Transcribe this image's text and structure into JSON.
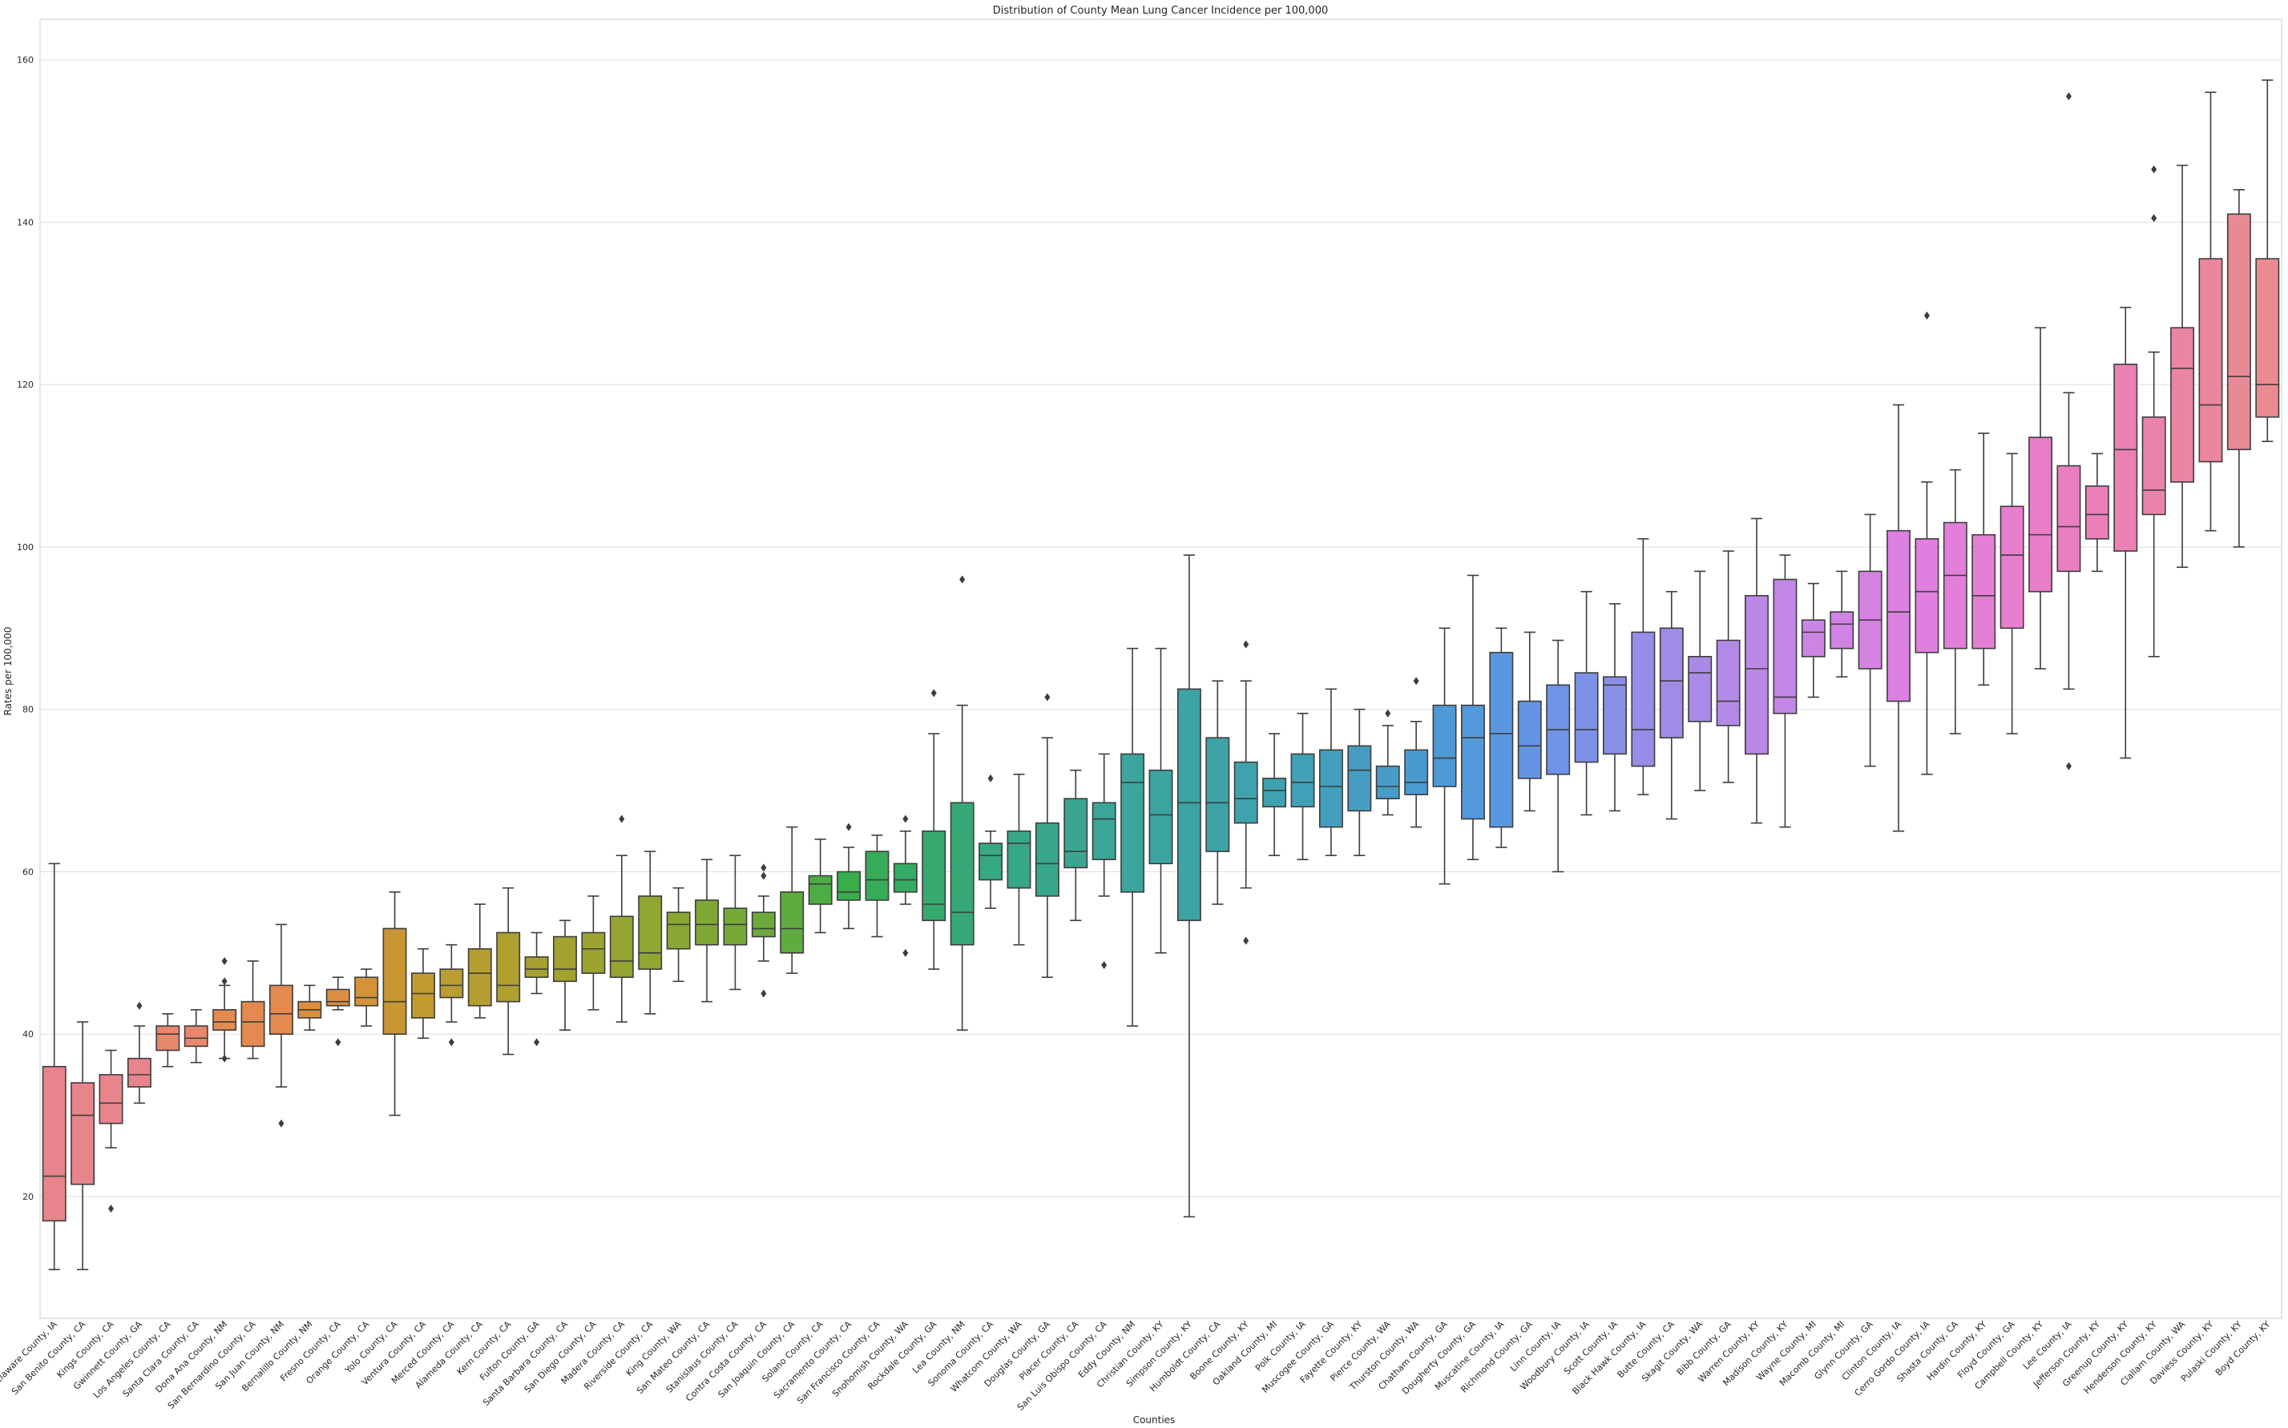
{
  "chart_data": {
    "type": "box",
    "title": "Distribution of County Mean Lung Cancer Incidence per 100,000",
    "xlabel": "Counties",
    "ylabel": "Rates per 100,000",
    "ylim": [
      5,
      165
    ],
    "yticks": [
      20,
      40,
      60,
      80,
      100,
      120,
      140,
      160
    ],
    "grid": "horizontal",
    "categories": [
      {
        "name": "Delaware County, IA",
        "stats": [
          11,
          17,
          22.5,
          36,
          61
        ],
        "outliers": [],
        "color": "#e8858c"
      },
      {
        "name": "San Benito County, CA",
        "stats": [
          11,
          21.5,
          30,
          34,
          41.5
        ],
        "outliers": [],
        "color": "#e8858c"
      },
      {
        "name": "Kings County, CA",
        "stats": [
          26,
          29,
          31.5,
          35,
          38
        ],
        "outliers": [
          18.5
        ],
        "color": "#e8858c"
      },
      {
        "name": "Gwinnett County, GA",
        "stats": [
          31.5,
          33.5,
          35,
          37,
          41
        ],
        "outliers": [
          43.5
        ],
        "color": "#e8858c"
      },
      {
        "name": "Los Angeles County, CA",
        "stats": [
          36,
          38,
          40,
          41,
          42.5
        ],
        "outliers": [],
        "color": "#e8876e"
      },
      {
        "name": "Santa Clara County, CA",
        "stats": [
          36.5,
          38.5,
          39.5,
          41,
          43
        ],
        "outliers": [],
        "color": "#e8876e"
      },
      {
        "name": "Dona Ana County, NM",
        "stats": [
          37,
          40.5,
          41.5,
          43,
          46
        ],
        "outliers": [
          37,
          46.5,
          49
        ],
        "color": "#e48a50"
      },
      {
        "name": "San Bernardino County, CA",
        "stats": [
          37,
          38.5,
          41.5,
          44,
          49
        ],
        "outliers": [],
        "color": "#e48a50"
      },
      {
        "name": "San Juan County, NM",
        "stats": [
          33.5,
          40,
          42.5,
          46,
          53.5
        ],
        "outliers": [
          29
        ],
        "color": "#e48a50"
      },
      {
        "name": "Bernalillo County, NM",
        "stats": [
          40.5,
          42,
          43,
          44,
          46
        ],
        "outliers": [],
        "color": "#dd8e40"
      },
      {
        "name": "Fresno County, CA",
        "stats": [
          43,
          43.5,
          44,
          45.5,
          47
        ],
        "outliers": [
          39
        ],
        "color": "#dd8e40"
      },
      {
        "name": "Orange County, CA",
        "stats": [
          41,
          43.5,
          44.5,
          47,
          48
        ],
        "outliers": [],
        "color": "#d49338"
      },
      {
        "name": "Yolo County, CA",
        "stats": [
          30,
          40,
          44,
          53,
          57.5
        ],
        "outliers": [],
        "color": "#c99634"
      },
      {
        "name": "Ventura County, CA",
        "stats": [
          39.5,
          42,
          45,
          47.5,
          50.5
        ],
        "outliers": [],
        "color": "#c19a32"
      },
      {
        "name": "Merced County, CA",
        "stats": [
          41.5,
          44.5,
          46,
          48,
          51
        ],
        "outliers": [
          39
        ],
        "color": "#bb9c30"
      },
      {
        "name": "Alameda County, CA",
        "stats": [
          42,
          43.5,
          47.5,
          50.5,
          56
        ],
        "outliers": [],
        "color": "#b59e2f"
      },
      {
        "name": "Kern County, CA",
        "stats": [
          37.5,
          44,
          46,
          52.5,
          58
        ],
        "outliers": [],
        "color": "#b09f2f"
      },
      {
        "name": "Fulton County, GA",
        "stats": [
          45,
          47,
          48,
          49.5,
          52.5
        ],
        "outliers": [
          39
        ],
        "color": "#a9a12f"
      },
      {
        "name": "Santa Barbara County, CA",
        "stats": [
          40.5,
          46.5,
          48,
          52,
          54
        ],
        "outliers": [],
        "color": "#a3a22f"
      },
      {
        "name": "San Diego County, CA",
        "stats": [
          43,
          47.5,
          50.5,
          52.5,
          57
        ],
        "outliers": [],
        "color": "#9ca42f"
      },
      {
        "name": "Madera County, CA",
        "stats": [
          41.5,
          47,
          49,
          54.5,
          62
        ],
        "outliers": [
          66.5
        ],
        "color": "#96a530"
      },
      {
        "name": "Riverside County, CA",
        "stats": [
          42.5,
          48,
          50,
          57,
          62.5
        ],
        "outliers": [],
        "color": "#8fa631"
      },
      {
        "name": "King County, WA",
        "stats": [
          46.5,
          50.5,
          53.5,
          55,
          58
        ],
        "outliers": [],
        "color": "#88a733"
      },
      {
        "name": "San Mateo County, CA",
        "stats": [
          44,
          51,
          53.5,
          56.5,
          61.5
        ],
        "outliers": [],
        "color": "#80a835"
      },
      {
        "name": "Stanislaus County, CA",
        "stats": [
          45.5,
          51,
          53.5,
          55.5,
          62
        ],
        "outliers": [],
        "color": "#77a937"
      },
      {
        "name": "Contra Costa County, CA",
        "stats": [
          49,
          52,
          53,
          55,
          57
        ],
        "outliers": [
          45,
          59.5,
          60.5
        ],
        "color": "#6daa3a"
      },
      {
        "name": "San Joaquin County, CA",
        "stats": [
          47.5,
          50,
          53,
          57.5,
          65.5
        ],
        "outliers": [],
        "color": "#5fab3e"
      },
      {
        "name": "Solano County, CA",
        "stats": [
          52.5,
          56,
          58.5,
          59.5,
          64
        ],
        "outliers": [],
        "color": "#4dac44"
      },
      {
        "name": "Sacramento County, CA",
        "stats": [
          53,
          56.5,
          57.5,
          60,
          63
        ],
        "outliers": [
          65.5
        ],
        "color": "#39ac4c"
      },
      {
        "name": "San Francisco County, CA",
        "stats": [
          52,
          56.5,
          59,
          62.5,
          64.5
        ],
        "outliers": [],
        "color": "#36ab58"
      },
      {
        "name": "Snohomish County, WA",
        "stats": [
          56,
          57.5,
          59,
          61,
          65
        ],
        "outliers": [
          50,
          66.5
        ],
        "color": "#35aa64"
      },
      {
        "name": "Rockdale County, GA",
        "stats": [
          48,
          54,
          56,
          65,
          77
        ],
        "outliers": [
          82
        ],
        "color": "#35a96e"
      },
      {
        "name": "Lea County, NM",
        "stats": [
          40.5,
          51,
          55,
          68.5,
          80.5
        ],
        "outliers": [
          96
        ],
        "color": "#36a977"
      },
      {
        "name": "Sonoma County, CA",
        "stats": [
          55.5,
          59,
          62,
          63.5,
          65
        ],
        "outliers": [
          71.5
        ],
        "color": "#37a87f"
      },
      {
        "name": "Whatcom County, WA",
        "stats": [
          51,
          58,
          63.5,
          65,
          72
        ],
        "outliers": [],
        "color": "#38a786"
      },
      {
        "name": "Douglas County, GA",
        "stats": [
          47,
          57,
          61,
          66,
          76.5
        ],
        "outliers": [
          81.5
        ],
        "color": "#39a78c"
      },
      {
        "name": "Placer County, CA",
        "stats": [
          54,
          60.5,
          62.5,
          69,
          72.5
        ],
        "outliers": [],
        "color": "#3aa692"
      },
      {
        "name": "San Luis Obispo County, CA",
        "stats": [
          57,
          61.5,
          66.5,
          68.5,
          74.5
        ],
        "outliers": [
          48.5
        ],
        "color": "#3ba597"
      },
      {
        "name": "Eddy County, NM",
        "stats": [
          41,
          57.5,
          71,
          74.5,
          87.5
        ],
        "outliers": [],
        "color": "#3ca59c"
      },
      {
        "name": "Christian County, KY",
        "stats": [
          50,
          61,
          67,
          72.5,
          87.5
        ],
        "outliers": [],
        "color": "#3ca4a0"
      },
      {
        "name": "Simpson County, KY",
        "stats": [
          17.5,
          54,
          68.5,
          82.5,
          99
        ],
        "outliers": [],
        "color": "#3da3a4"
      },
      {
        "name": "Humboldt County, CA",
        "stats": [
          56,
          62.5,
          68.5,
          76.5,
          83.5
        ],
        "outliers": [],
        "color": "#3ea3a8"
      },
      {
        "name": "Boone County, KY",
        "stats": [
          58,
          66,
          69,
          73.5,
          83.5
        ],
        "outliers": [
          51.5,
          88
        ],
        "color": "#3fa2ad"
      },
      {
        "name": "Oakland County, MI",
        "stats": [
          62,
          68,
          70,
          71.5,
          77
        ],
        "outliers": [],
        "color": "#40a1b1"
      },
      {
        "name": "Polk County, IA",
        "stats": [
          61.5,
          68,
          71,
          74.5,
          79.5
        ],
        "outliers": [],
        "color": "#41a0b6"
      },
      {
        "name": "Muscogee County, GA",
        "stats": [
          62,
          65.5,
          70.5,
          75,
          82.5
        ],
        "outliers": [],
        "color": "#439fbb"
      },
      {
        "name": "Fayette County, KY",
        "stats": [
          62,
          67.5,
          72.5,
          75.5,
          80
        ],
        "outliers": [],
        "color": "#459ec1"
      },
      {
        "name": "Pierce County, WA",
        "stats": [
          67,
          69,
          70.5,
          73,
          78
        ],
        "outliers": [
          79.5
        ],
        "color": "#479dc7"
      },
      {
        "name": "Thurston County, WA",
        "stats": [
          65.5,
          69.5,
          71,
          75,
          78.5
        ],
        "outliers": [
          83.5
        ],
        "color": "#4a9bcd"
      },
      {
        "name": "Chatham County, GA",
        "stats": [
          58.5,
          70.5,
          74,
          80.5,
          90
        ],
        "outliers": [],
        "color": "#4e9ad4"
      },
      {
        "name": "Dougherty County, GA",
        "stats": [
          61.5,
          66.5,
          76.5,
          80.5,
          96.5
        ],
        "outliers": [],
        "color": "#5399db"
      },
      {
        "name": "Muscatine County, IA",
        "stats": [
          63,
          65.5,
          77,
          87,
          90
        ],
        "outliers": [],
        "color": "#5a97e0"
      },
      {
        "name": "Richmond County, GA",
        "stats": [
          67.5,
          71.5,
          75.5,
          81,
          89.5
        ],
        "outliers": [],
        "color": "#6395e4"
      },
      {
        "name": "Linn County, IA",
        "stats": [
          60,
          72,
          77.5,
          83,
          88.5
        ],
        "outliers": [],
        "color": "#6f93e6"
      },
      {
        "name": "Woodbury County, IA",
        "stats": [
          67,
          73.5,
          77.5,
          84.5,
          94.5
        ],
        "outliers": [],
        "color": "#7c91e7"
      },
      {
        "name": "Scott County, IA",
        "stats": [
          67.5,
          74.5,
          83,
          84,
          93
        ],
        "outliers": [],
        "color": "#898fe7"
      },
      {
        "name": "Black Hawk County, IA",
        "stats": [
          69.5,
          73,
          77.5,
          89.5,
          101
        ],
        "outliers": [],
        "color": "#958de7"
      },
      {
        "name": "Butte County, CA",
        "stats": [
          66.5,
          76.5,
          83.5,
          90,
          94.5
        ],
        "outliers": [],
        "color": "#a08ce6"
      },
      {
        "name": "Skagit County, WA",
        "stats": [
          70,
          78.5,
          84.5,
          86.5,
          97
        ],
        "outliers": [],
        "color": "#aa8ae6"
      },
      {
        "name": "Bibb County, GA",
        "stats": [
          71,
          78,
          81,
          88.5,
          99.5
        ],
        "outliers": [],
        "color": "#b389e6"
      },
      {
        "name": "Warren County, KY",
        "stats": [
          66,
          74.5,
          85,
          94,
          103.5
        ],
        "outliers": [],
        "color": "#bb88e6"
      },
      {
        "name": "Madison County, KY",
        "stats": [
          65.5,
          79.5,
          81.5,
          96,
          99
        ],
        "outliers": [],
        "color": "#c386e6"
      },
      {
        "name": "Wayne County, MI",
        "stats": [
          81.5,
          86.5,
          89.5,
          91,
          95.5
        ],
        "outliers": [],
        "color": "#ca85e5"
      },
      {
        "name": "Macomb County, MI",
        "stats": [
          84,
          87.5,
          90.5,
          92,
          97
        ],
        "outliers": [],
        "color": "#d083e4"
      },
      {
        "name": "Glynn County, GA",
        "stats": [
          73,
          85,
          91,
          97,
          104
        ],
        "outliers": [],
        "color": "#d682e3"
      },
      {
        "name": "Clinton County, IA",
        "stats": [
          65,
          81,
          92,
          102,
          117.5
        ],
        "outliers": [],
        "color": "#dc80e2"
      },
      {
        "name": "Cerro Gordo County, IA",
        "stats": [
          72,
          87,
          94.5,
          101,
          108
        ],
        "outliers": [
          128.5
        ],
        "color": "#e07fdf"
      },
      {
        "name": "Shasta County, CA",
        "stats": [
          77,
          87.5,
          96.5,
          103,
          109.5
        ],
        "outliers": [],
        "color": "#e37fda"
      },
      {
        "name": "Hardin County, KY",
        "stats": [
          83,
          87.5,
          94,
          101.5,
          114
        ],
        "outliers": [],
        "color": "#e57fd4"
      },
      {
        "name": "Floyd County, GA",
        "stats": [
          77,
          90,
          99,
          105,
          111.5
        ],
        "outliers": [],
        "color": "#e77ece"
      },
      {
        "name": "Campbell County, KY",
        "stats": [
          85,
          94.5,
          101.5,
          113.5,
          127
        ],
        "outliers": [],
        "color": "#e87ec7"
      },
      {
        "name": "Lee County, IA",
        "stats": [
          82.5,
          97,
          102.5,
          110,
          119
        ],
        "outliers": [
          73,
          155.5
        ],
        "color": "#e97fc0"
      },
      {
        "name": "Jefferson County, KY",
        "stats": [
          97,
          101,
          104,
          107.5,
          111.5
        ],
        "outliers": [],
        "color": "#e980b9"
      },
      {
        "name": "Greenup County, KY",
        "stats": [
          74,
          99.5,
          112,
          122.5,
          129.5
        ],
        "outliers": [],
        "color": "#ea81b2"
      },
      {
        "name": "Henderson County, KY",
        "stats": [
          86.5,
          104,
          107,
          116,
          124
        ],
        "outliers": [
          140.5,
          146.5
        ],
        "color": "#ea83ab"
      },
      {
        "name": "Clallam County, WA",
        "stats": [
          97.5,
          108,
          122,
          127,
          147
        ],
        "outliers": [],
        "color": "#ea85a4"
      },
      {
        "name": "Daviess County, KY",
        "stats": [
          102,
          110.5,
          117.5,
          135.5,
          156
        ],
        "outliers": [],
        "color": "#ea879d"
      },
      {
        "name": "Pulaski County, KY",
        "stats": [
          100,
          112,
          121,
          141,
          144
        ],
        "outliers": [],
        "color": "#ea8996"
      },
      {
        "name": "Boyd County, KY",
        "stats": [
          113,
          116,
          120,
          135.5,
          157.5
        ],
        "outliers": [],
        "color": "#ea8b90"
      }
    ]
  }
}
